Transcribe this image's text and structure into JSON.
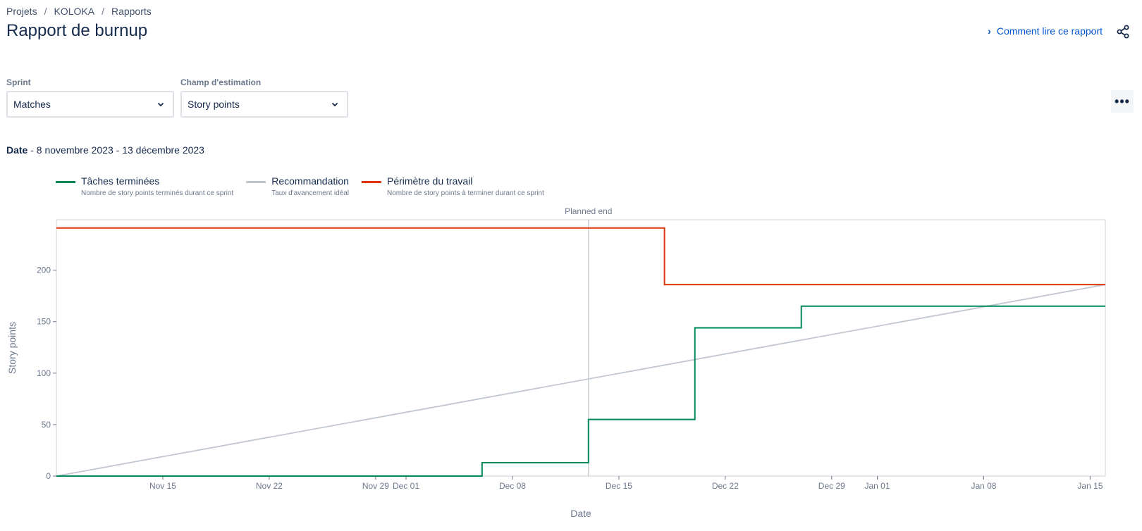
{
  "breadcrumb": {
    "items": [
      "Projets",
      "KOLOKA",
      "Rapports"
    ],
    "separator": "/"
  },
  "page_title": "Rapport de burnup",
  "help_link": "Comment lire ce rapport",
  "icons": {
    "share": "share-icon",
    "more": "more-icon",
    "chevron": "chevron-right-icon",
    "dropdown": "chevron-down-icon"
  },
  "filters": {
    "sprint": {
      "label": "Sprint",
      "value": "Matches"
    },
    "estimation": {
      "label": "Champ d'estimation",
      "value": "Story points"
    }
  },
  "date_range": {
    "label": "Date",
    "value": " - 8 novembre 2023 - 13 décembre 2023"
  },
  "legend": [
    {
      "name": "Tâches terminées",
      "desc": "Nombre de story points terminés durant ce sprint",
      "color": "#00875a"
    },
    {
      "name": "Recommandation",
      "desc": "Taux d'avancement idéal",
      "color": "#c1c7d0"
    },
    {
      "name": "Périmètre du travail",
      "desc": "Nombre de story points à terminer durant ce sprint",
      "color": "#de350b"
    }
  ],
  "chart_data": {
    "type": "line",
    "ylabel": "Story points",
    "xlabel": "Date",
    "x_range": [
      "2023-11-08",
      "2024-01-16"
    ],
    "ylim": [
      0,
      249
    ],
    "y_ticks": [
      0,
      50,
      100,
      150,
      200
    ],
    "x_ticks": [
      {
        "date": "2023-11-15",
        "label": "Nov 15"
      },
      {
        "date": "2023-11-22",
        "label": "Nov 22"
      },
      {
        "date": "2023-11-29",
        "label": "Nov 29"
      },
      {
        "date": "2023-12-01",
        "label": "Dec 01"
      },
      {
        "date": "2023-12-08",
        "label": "Dec 08"
      },
      {
        "date": "2023-12-15",
        "label": "Dec 15"
      },
      {
        "date": "2023-12-22",
        "label": "Dec 22"
      },
      {
        "date": "2023-12-29",
        "label": "Dec 29"
      },
      {
        "date": "2024-01-01",
        "label": "Jan 01"
      },
      {
        "date": "2024-01-08",
        "label": "Jan 08"
      },
      {
        "date": "2024-01-15",
        "label": "Jan 15"
      }
    ],
    "planned_end": {
      "date": "2023-12-13",
      "label": "Planned end"
    },
    "series": [
      {
        "name": "Tâches terminées",
        "color": "#00875a",
        "step": true,
        "points": [
          [
            "2023-11-08",
            0
          ],
          [
            "2023-12-06",
            13
          ],
          [
            "2023-12-13",
            55
          ],
          [
            "2023-12-20",
            144
          ],
          [
            "2023-12-27",
            165
          ],
          [
            "2024-01-16",
            165
          ]
        ]
      },
      {
        "name": "Recommandation",
        "color": "#c1c7d0",
        "step": false,
        "points": [
          [
            "2023-11-08",
            0
          ],
          [
            "2024-01-16",
            186
          ]
        ]
      },
      {
        "name": "Périmètre du travail",
        "color": "#de350b",
        "step": true,
        "points": [
          [
            "2023-11-08",
            241
          ],
          [
            "2023-12-18",
            186
          ],
          [
            "2024-01-16",
            186
          ]
        ]
      }
    ]
  }
}
